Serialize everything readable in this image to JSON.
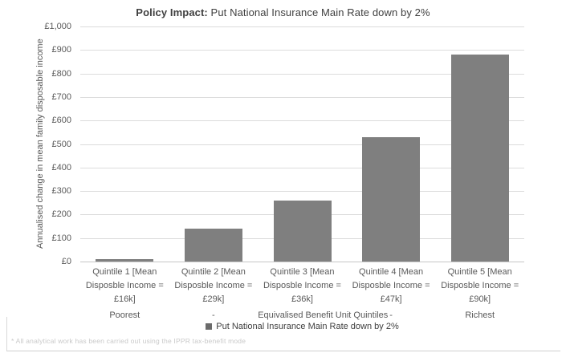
{
  "title": {
    "bold": "Policy Impact:",
    "rest": " Put National Insurance Main Rate down by 2%"
  },
  "footnote": "* All analytical work has been carried out using the IPPR tax-benefit mode",
  "chart_data": {
    "type": "bar",
    "title": "Policy Impact: Put National Insurance Main Rate down by 2%",
    "ylabel": "Annualised change in mean family disposable income",
    "xlabel": "Equivalised Benefit Unit Quintiles",
    "ylim": [
      0,
      1000
    ],
    "ytick_labels": [
      "£1,000",
      "£900",
      "£800",
      "£700",
      "£600",
      "£500",
      "£400",
      "£300",
      "£200",
      "£100",
      "£0"
    ],
    "categories": [
      [
        "Quintile 1 [Mean",
        "Disposble Income =",
        "£16k]"
      ],
      [
        "Quintile 2 [Mean",
        "Disposble Income =",
        "£29k]"
      ],
      [
        "Quintile 3 [Mean",
        "Disposble Income =",
        "£36k]"
      ],
      [
        "Quintile 4 [Mean",
        "Disposble Income =",
        "£47k]"
      ],
      [
        "Quintile 5 [Mean",
        "Disposble Income =",
        "£90k]"
      ]
    ],
    "values": [
      10,
      140,
      260,
      530,
      880
    ],
    "group_labels": [
      "Poorest",
      "-",
      "Equivalised Benefit Unit Quintiles",
      "-",
      "Richest"
    ],
    "legend": "Put National Insurance Main Rate down by 2%",
    "legend_position": "bottom",
    "grid": true,
    "bar_color": "#7f7f7f",
    "legend_marker_color": "#6b6b6b",
    "gridline_color": "#dcdcdc",
    "axis_text_color": "#595959"
  }
}
